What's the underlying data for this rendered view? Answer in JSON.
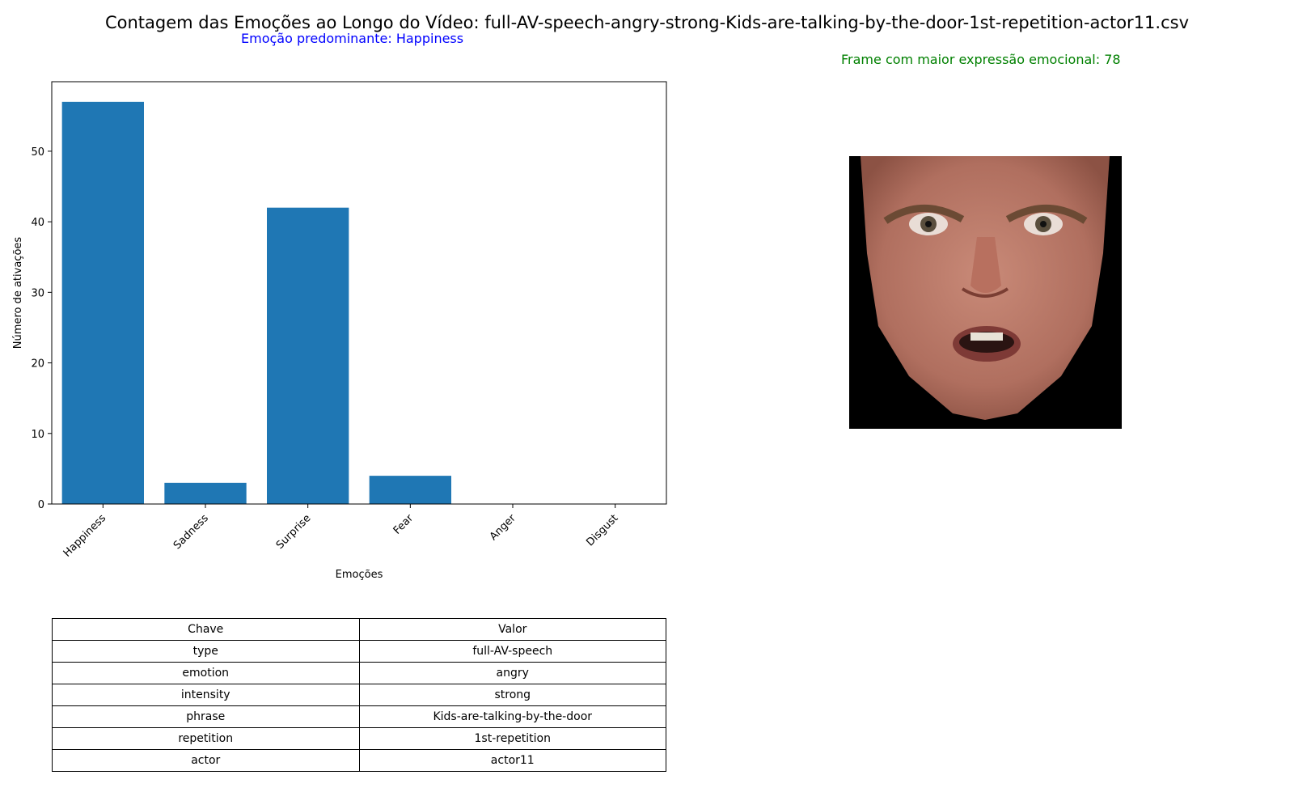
{
  "title": "Contagem das Emoções ao Longo do Vídeo: full-AV-speech-angry-strong-Kids-are-talking-by-the-door-1st-repetition-actor11.csv",
  "predominant_label": "Emoção predominante: Happiness",
  "max_frame_label": "Frame com maior expressão emocional: 78",
  "colors": {
    "bar": "#1f77b4",
    "predominant": "#0000ff",
    "max_frame": "#008000"
  },
  "chart_data": {
    "type": "bar",
    "categories": [
      "Happiness",
      "Sadness",
      "Surprise",
      "Fear",
      "Anger",
      "Disgust"
    ],
    "values": [
      57,
      3,
      42,
      4,
      0,
      0
    ],
    "xlabel": "Emoções",
    "ylabel": "Número de ativações",
    "ylim": [
      0,
      59.85
    ],
    "yticks": [
      0,
      10,
      20,
      30,
      40,
      50
    ],
    "grid": false
  },
  "face_image": {
    "description": "actor face frame",
    "icon": "face-image"
  },
  "table": {
    "header": [
      "Chave",
      "Valor"
    ],
    "rows": [
      [
        "type",
        "full-AV-speech"
      ],
      [
        "emotion",
        "angry"
      ],
      [
        "intensity",
        "strong"
      ],
      [
        "phrase",
        "Kids-are-talking-by-the-door"
      ],
      [
        "repetition",
        "1st-repetition"
      ],
      [
        "actor",
        "actor11"
      ]
    ]
  }
}
